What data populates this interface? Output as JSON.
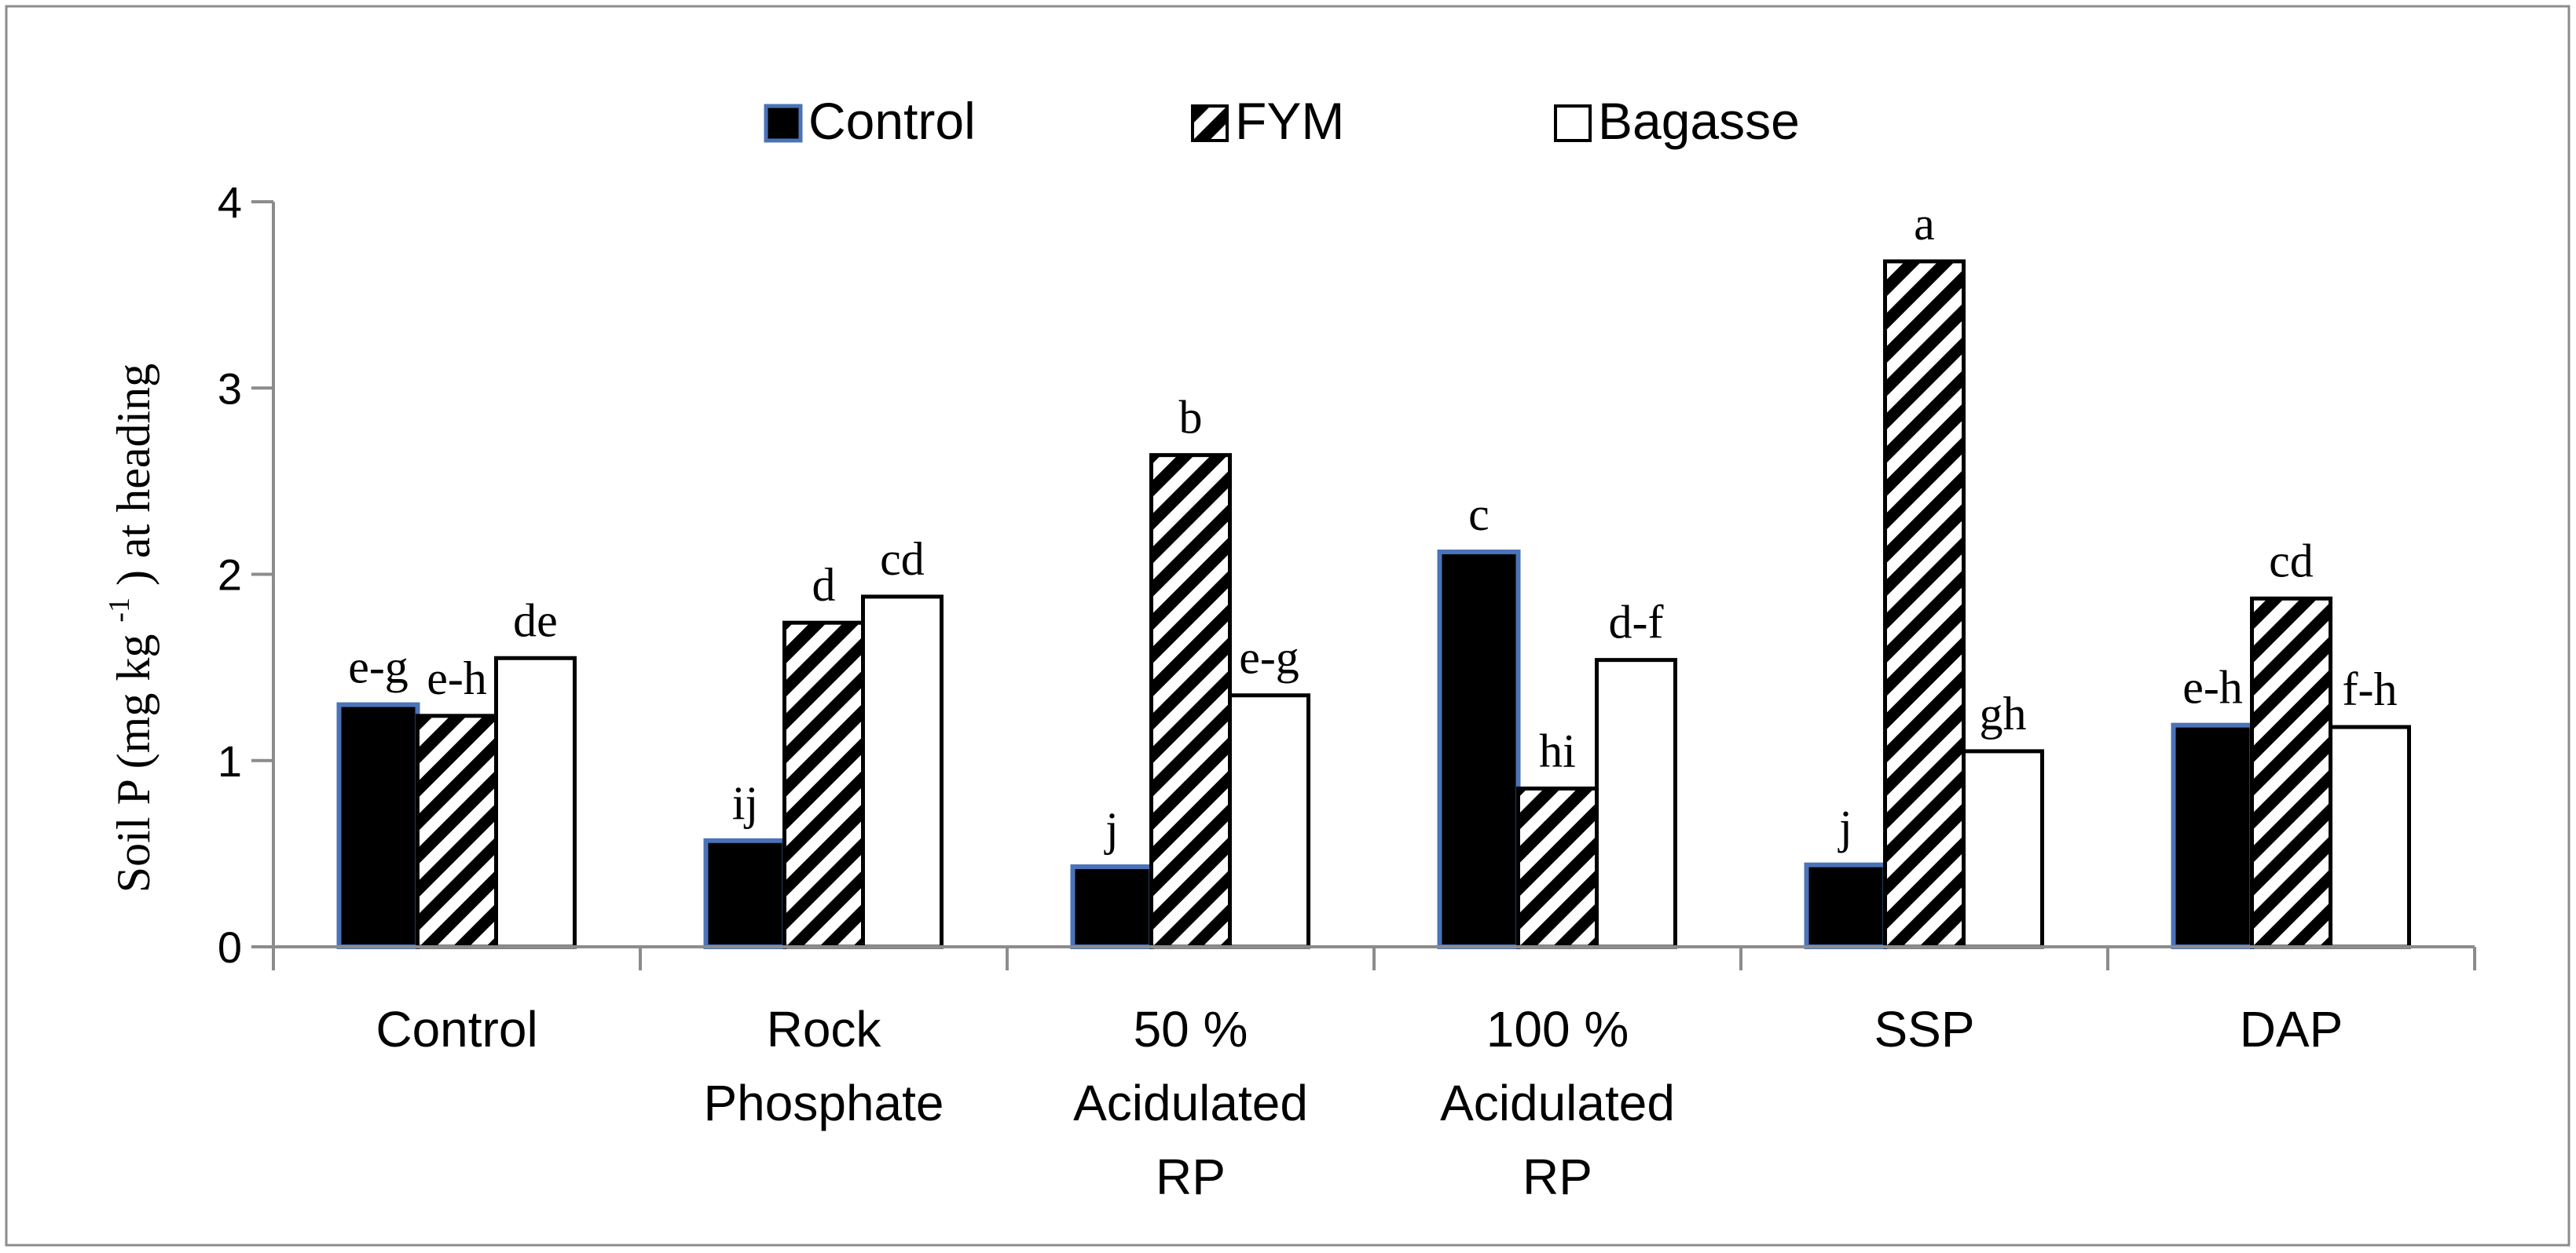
{
  "chart_data": {
    "type": "bar",
    "title": "",
    "xlabel": "",
    "ylabel": {
      "prefix": "Soil  P (mg kg",
      "superscript": "-1",
      "suffix": ") at heading"
    },
    "ylim": [
      0,
      4
    ],
    "yticks": [
      "0",
      "1",
      "2",
      "3",
      "4"
    ],
    "grid": false,
    "legend_position": "top-center",
    "categories": [
      [
        "Control"
      ],
      [
        "Rock",
        "Phosphate"
      ],
      [
        "50 %",
        "Acidulated",
        "RP"
      ],
      [
        "100 %",
        "Acidulated",
        "RP"
      ],
      [
        "SSP"
      ],
      [
        "DAP"
      ]
    ],
    "series": [
      {
        "name": "Control",
        "pattern": "solid-black",
        "values": [
          1.3,
          0.57,
          0.43,
          2.12,
          0.44,
          1.19
        ],
        "labels": [
          "e-g",
          "ij",
          "j",
          "c",
          "j",
          "e-h"
        ]
      },
      {
        "name": "FYM",
        "pattern": "diagonal-hatch",
        "values": [
          1.24,
          1.74,
          2.64,
          0.85,
          3.68,
          1.87
        ],
        "labels": [
          "e-h",
          "d",
          "b",
          "hi",
          "a",
          "cd"
        ]
      },
      {
        "name": "Bagasse",
        "pattern": "white",
        "values": [
          1.55,
          1.88,
          1.35,
          1.54,
          1.05,
          1.18
        ],
        "labels": [
          "de",
          "cd",
          "e-g",
          "d-f",
          "gh",
          "f-h"
        ]
      }
    ],
    "colors": {
      "control_fill": "#000000",
      "control_border": "#4a73b8",
      "outline": "#000000",
      "axis": "#8c8c8c",
      "background": "#ffffff"
    }
  }
}
